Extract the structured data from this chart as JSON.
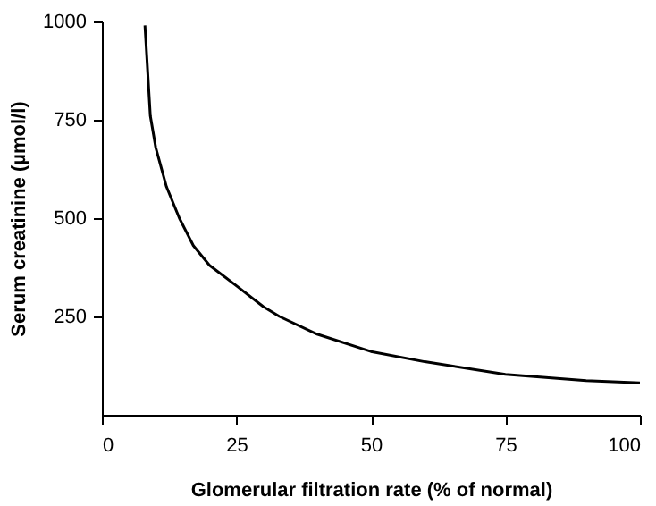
{
  "chart_data": {
    "type": "line",
    "xlabel": "Glomerular filtration rate (% of normal)",
    "ylabel": "Serum creatinine (µmol/l)",
    "x": [
      8,
      9,
      10,
      12,
      14.4,
      17,
      20,
      25,
      30,
      33,
      40,
      50,
      60,
      75,
      90,
      100
    ],
    "series": [
      {
        "color": "#000000",
        "values": [
          990,
          760,
          680,
          580,
          500,
          430,
          380,
          328,
          275,
          250,
          205,
          161,
          135,
          103,
          87,
          81
        ]
      }
    ],
    "xlim": [
      0,
      100
    ],
    "xticks": [
      0,
      25,
      50,
      75,
      100
    ],
    "ylim": [
      0,
      1000
    ],
    "yticks": [
      250,
      500,
      750,
      1000
    ],
    "grid": false,
    "marker": "none",
    "line_style": "solid"
  }
}
